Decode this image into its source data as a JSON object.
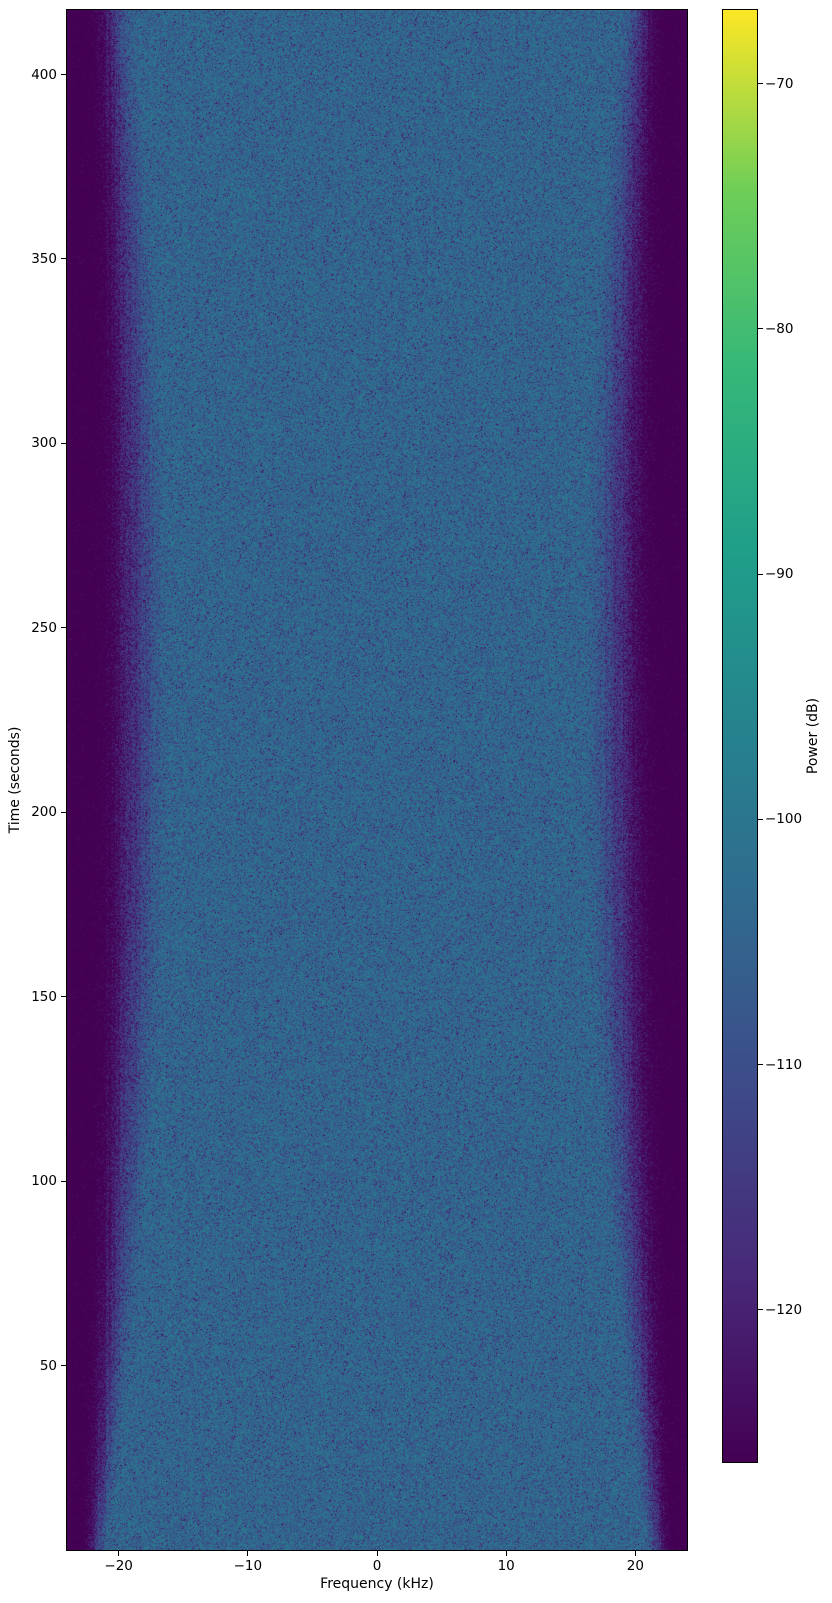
{
  "chart_data": {
    "type": "heatmap",
    "subtype": "spectrogram",
    "title": "",
    "xlabel": "Frequency (kHz)",
    "ylabel": "Time (seconds)",
    "xlim": [
      -24,
      24
    ],
    "ylim": [
      0,
      417.5
    ],
    "xticks": [
      -20,
      -10,
      0,
      10,
      20
    ],
    "yticks": [
      50,
      100,
      150,
      200,
      250,
      300,
      350,
      400
    ],
    "grid": false,
    "legend": "none",
    "colormap": "viridis",
    "colorbar": {
      "label": "Power (dB)",
      "position": "right",
      "vmin": -126.2,
      "vmax": -67.0,
      "ticks": [
        -70,
        -80,
        -90,
        -100,
        -110,
        -120
      ]
    },
    "heatmap_model": {
      "description": "Featureless noise-floor spectrogram: speckled steel-blue passband around -104 dB, dark purple stopband below -126 dB beyond roughly +/-23 kHz, with a noisy smooth roll-off whose width varies slowly over time (widest near mid-recording).",
      "passband_level_db": -102.5,
      "stopband_level_db": -130,
      "speckle_noise": "exponential-power",
      "column_jitter_db": 2.5,
      "passband_edge_khz_vs_time": [
        [
          0,
          20.7
        ],
        [
          250,
          15.8
        ],
        [
          417.5,
          18.7
        ]
      ],
      "stopband_edge_khz_vs_time": [
        [
          0,
          23.15
        ],
        [
          250,
          22.2
        ],
        [
          417.5,
          22.6
        ]
      ]
    }
  }
}
